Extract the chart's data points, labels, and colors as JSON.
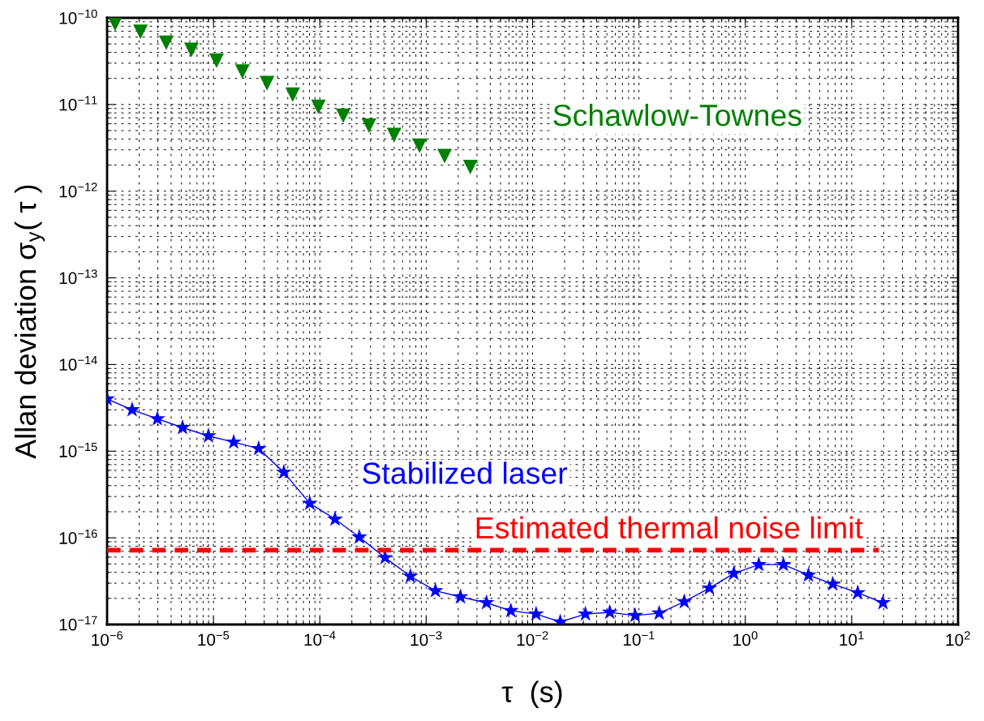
{
  "chart_data": {
    "type": "line",
    "xlabel": "τ  (s)",
    "ylabel": "Allan deviation σ$_{y}$( τ )",
    "log": "xy",
    "grid": true,
    "legend": false,
    "xlim": [
      1e-06,
      100
    ],
    "ylim": [
      1e-17,
      1e-10
    ],
    "xticks": [
      {
        "value": 1e-06,
        "label": "10$^{−6}$"
      },
      {
        "value": 1e-05,
        "label": "10$^{−5}$"
      },
      {
        "value": 0.0001,
        "label": "10$^{−4}$"
      },
      {
        "value": 0.001,
        "label": "10$^{−3}$"
      },
      {
        "value": 0.01,
        "label": "10$^{−2}$"
      },
      {
        "value": 0.1,
        "label": "10$^{−1}$"
      },
      {
        "value": 1,
        "label": "10$^{0}$"
      },
      {
        "value": 10,
        "label": "10$^{1}$"
      },
      {
        "value": 100,
        "label": "10$^{2}$"
      }
    ],
    "yticks": [
      {
        "value": 1e-17,
        "label": "10$^{−17}$"
      },
      {
        "value": 1e-16,
        "label": "10$^{−16}$"
      },
      {
        "value": 1e-15,
        "label": "10$^{−15}$"
      },
      {
        "value": 1e-14,
        "label": "10$^{−14}$"
      },
      {
        "value": 1e-13,
        "label": "10$^{−13}$"
      },
      {
        "value": 1e-12,
        "label": "10$^{−12}$"
      },
      {
        "value": 1e-11,
        "label": "10$^{−11}$"
      },
      {
        "value": 1e-10,
        "label": "10$^{−10}$"
      }
    ],
    "series": [
      {
        "name": "Schawlow-Townes",
        "type": "scatter",
        "color": "#008000",
        "marker": "triangle",
        "x": [
          1.19e-06,
          2.06e-06,
          3.6e-06,
          6.2e-06,
          1.07e-05,
          1.87e-05,
          3.19e-05,
          5.56e-05,
          9.7e-05,
          0.000166,
          0.00029,
          0.000499,
          0.000865,
          0.00149,
          0.0026
        ],
        "values": [
          8.55e-11,
          6.9e-11,
          5.16e-11,
          4.26e-11,
          3.2e-11,
          2.4e-11,
          1.76e-11,
          1.3e-11,
          9.4e-12,
          7.4e-12,
          5.7e-12,
          4.45e-12,
          3.34e-12,
          2.54e-12,
          1.9e-12
        ]
      },
      {
        "name": "Stabilized laser",
        "color": "#0000ff",
        "marker": "star",
        "line_style": "solid",
        "x": [
          1e-06,
          1.72e-06,
          2.97e-06,
          5.12e-06,
          8.97e-06,
          1.55e-05,
          2.66e-05,
          4.59e-05,
          8.04e-05,
          0.000139,
          0.000235,
          0.000411,
          0.00071,
          0.00122,
          0.0021,
          0.00369,
          0.00625,
          0.0108,
          0.0182,
          0.0314,
          0.0532,
          0.092,
          0.155,
          0.267,
          0.46,
          0.78,
          1.34,
          2.28,
          3.92,
          6.64,
          11.4,
          19.7
        ],
        "values": [
          4e-15,
          3e-15,
          2.36e-15,
          1.87e-15,
          1.5e-15,
          1.27e-15,
          1.07e-15,
          5.7e-16,
          2.5e-16,
          1.64e-16,
          1.02e-16,
          5.9e-17,
          3.6e-17,
          2.45e-17,
          2.08e-17,
          1.78e-17,
          1.44e-17,
          1.32e-17,
          1.07e-17,
          1.32e-17,
          1.38e-17,
          1.27e-17,
          1.35e-17,
          1.83e-17,
          2.63e-17,
          3.88e-17,
          4.91e-17,
          4.91e-17,
          3.71e-17,
          2.93e-17,
          2.32e-17,
          1.78e-17
        ]
      },
      {
        "name": "Estimated thermal noise limit",
        "type": "line",
        "color": "#ff0000",
        "marker": "none",
        "line_style": "dashed",
        "x": [
          1e-06,
          18
        ],
        "values": [
          7.2e-17,
          7.2e-17
        ]
      }
    ]
  }
}
